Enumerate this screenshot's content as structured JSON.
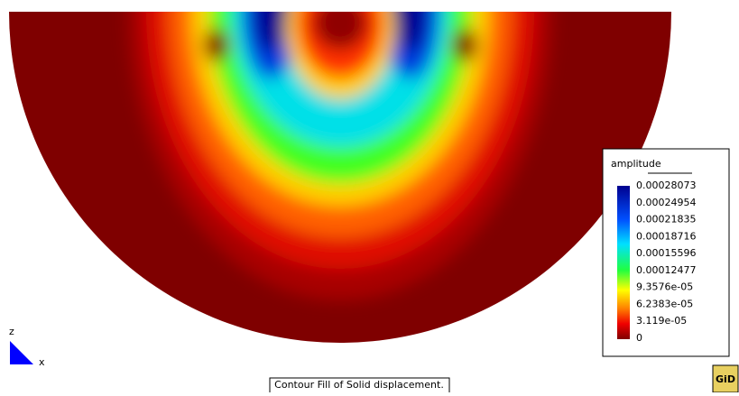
{
  "legend": {
    "title": "amplitude",
    "labels": [
      "0.00028073",
      "0.00024954",
      "0.00021835",
      "0.00018716",
      "0.00015596",
      "0.00012477",
      "9.3576e-05",
      "6.2383e-05",
      "3.119e-05",
      "0"
    ]
  },
  "axes": {
    "z": "z",
    "x": "x"
  },
  "caption": "Contour Fill of Solid displacement.",
  "logo": "GiD"
}
